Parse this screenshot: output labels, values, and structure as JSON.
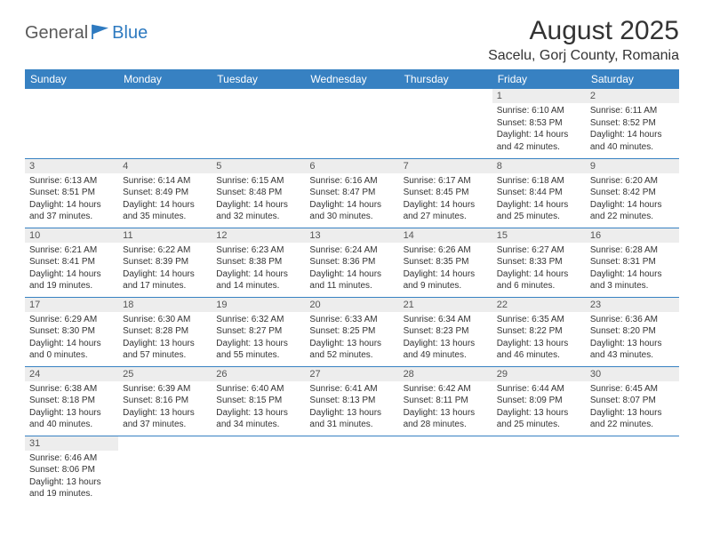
{
  "logo": {
    "text1": "General",
    "text2": "Blue"
  },
  "title": "August 2025",
  "location": "Sacelu, Gorj County, Romania",
  "colors": {
    "header_bg": "#3781c2",
    "header_text": "#ffffff",
    "daynum_bg": "#ededed",
    "row_border": "#3781c2",
    "logo_gray": "#5a5a5a",
    "logo_blue": "#2e7ac0"
  },
  "day_headers": [
    "Sunday",
    "Monday",
    "Tuesday",
    "Wednesday",
    "Thursday",
    "Friday",
    "Saturday"
  ],
  "weeks": [
    [
      null,
      null,
      null,
      null,
      null,
      {
        "n": "1",
        "sr": "Sunrise: 6:10 AM",
        "ss": "Sunset: 8:53 PM",
        "d1": "Daylight: 14 hours",
        "d2": "and 42 minutes."
      },
      {
        "n": "2",
        "sr": "Sunrise: 6:11 AM",
        "ss": "Sunset: 8:52 PM",
        "d1": "Daylight: 14 hours",
        "d2": "and 40 minutes."
      }
    ],
    [
      {
        "n": "3",
        "sr": "Sunrise: 6:13 AM",
        "ss": "Sunset: 8:51 PM",
        "d1": "Daylight: 14 hours",
        "d2": "and 37 minutes."
      },
      {
        "n": "4",
        "sr": "Sunrise: 6:14 AM",
        "ss": "Sunset: 8:49 PM",
        "d1": "Daylight: 14 hours",
        "d2": "and 35 minutes."
      },
      {
        "n": "5",
        "sr": "Sunrise: 6:15 AM",
        "ss": "Sunset: 8:48 PM",
        "d1": "Daylight: 14 hours",
        "d2": "and 32 minutes."
      },
      {
        "n": "6",
        "sr": "Sunrise: 6:16 AM",
        "ss": "Sunset: 8:47 PM",
        "d1": "Daylight: 14 hours",
        "d2": "and 30 minutes."
      },
      {
        "n": "7",
        "sr": "Sunrise: 6:17 AM",
        "ss": "Sunset: 8:45 PM",
        "d1": "Daylight: 14 hours",
        "d2": "and 27 minutes."
      },
      {
        "n": "8",
        "sr": "Sunrise: 6:18 AM",
        "ss": "Sunset: 8:44 PM",
        "d1": "Daylight: 14 hours",
        "d2": "and 25 minutes."
      },
      {
        "n": "9",
        "sr": "Sunrise: 6:20 AM",
        "ss": "Sunset: 8:42 PM",
        "d1": "Daylight: 14 hours",
        "d2": "and 22 minutes."
      }
    ],
    [
      {
        "n": "10",
        "sr": "Sunrise: 6:21 AM",
        "ss": "Sunset: 8:41 PM",
        "d1": "Daylight: 14 hours",
        "d2": "and 19 minutes."
      },
      {
        "n": "11",
        "sr": "Sunrise: 6:22 AM",
        "ss": "Sunset: 8:39 PM",
        "d1": "Daylight: 14 hours",
        "d2": "and 17 minutes."
      },
      {
        "n": "12",
        "sr": "Sunrise: 6:23 AM",
        "ss": "Sunset: 8:38 PM",
        "d1": "Daylight: 14 hours",
        "d2": "and 14 minutes."
      },
      {
        "n": "13",
        "sr": "Sunrise: 6:24 AM",
        "ss": "Sunset: 8:36 PM",
        "d1": "Daylight: 14 hours",
        "d2": "and 11 minutes."
      },
      {
        "n": "14",
        "sr": "Sunrise: 6:26 AM",
        "ss": "Sunset: 8:35 PM",
        "d1": "Daylight: 14 hours",
        "d2": "and 9 minutes."
      },
      {
        "n": "15",
        "sr": "Sunrise: 6:27 AM",
        "ss": "Sunset: 8:33 PM",
        "d1": "Daylight: 14 hours",
        "d2": "and 6 minutes."
      },
      {
        "n": "16",
        "sr": "Sunrise: 6:28 AM",
        "ss": "Sunset: 8:31 PM",
        "d1": "Daylight: 14 hours",
        "d2": "and 3 minutes."
      }
    ],
    [
      {
        "n": "17",
        "sr": "Sunrise: 6:29 AM",
        "ss": "Sunset: 8:30 PM",
        "d1": "Daylight: 14 hours",
        "d2": "and 0 minutes."
      },
      {
        "n": "18",
        "sr": "Sunrise: 6:30 AM",
        "ss": "Sunset: 8:28 PM",
        "d1": "Daylight: 13 hours",
        "d2": "and 57 minutes."
      },
      {
        "n": "19",
        "sr": "Sunrise: 6:32 AM",
        "ss": "Sunset: 8:27 PM",
        "d1": "Daylight: 13 hours",
        "d2": "and 55 minutes."
      },
      {
        "n": "20",
        "sr": "Sunrise: 6:33 AM",
        "ss": "Sunset: 8:25 PM",
        "d1": "Daylight: 13 hours",
        "d2": "and 52 minutes."
      },
      {
        "n": "21",
        "sr": "Sunrise: 6:34 AM",
        "ss": "Sunset: 8:23 PM",
        "d1": "Daylight: 13 hours",
        "d2": "and 49 minutes."
      },
      {
        "n": "22",
        "sr": "Sunrise: 6:35 AM",
        "ss": "Sunset: 8:22 PM",
        "d1": "Daylight: 13 hours",
        "d2": "and 46 minutes."
      },
      {
        "n": "23",
        "sr": "Sunrise: 6:36 AM",
        "ss": "Sunset: 8:20 PM",
        "d1": "Daylight: 13 hours",
        "d2": "and 43 minutes."
      }
    ],
    [
      {
        "n": "24",
        "sr": "Sunrise: 6:38 AM",
        "ss": "Sunset: 8:18 PM",
        "d1": "Daylight: 13 hours",
        "d2": "and 40 minutes."
      },
      {
        "n": "25",
        "sr": "Sunrise: 6:39 AM",
        "ss": "Sunset: 8:16 PM",
        "d1": "Daylight: 13 hours",
        "d2": "and 37 minutes."
      },
      {
        "n": "26",
        "sr": "Sunrise: 6:40 AM",
        "ss": "Sunset: 8:15 PM",
        "d1": "Daylight: 13 hours",
        "d2": "and 34 minutes."
      },
      {
        "n": "27",
        "sr": "Sunrise: 6:41 AM",
        "ss": "Sunset: 8:13 PM",
        "d1": "Daylight: 13 hours",
        "d2": "and 31 minutes."
      },
      {
        "n": "28",
        "sr": "Sunrise: 6:42 AM",
        "ss": "Sunset: 8:11 PM",
        "d1": "Daylight: 13 hours",
        "d2": "and 28 minutes."
      },
      {
        "n": "29",
        "sr": "Sunrise: 6:44 AM",
        "ss": "Sunset: 8:09 PM",
        "d1": "Daylight: 13 hours",
        "d2": "and 25 minutes."
      },
      {
        "n": "30",
        "sr": "Sunrise: 6:45 AM",
        "ss": "Sunset: 8:07 PM",
        "d1": "Daylight: 13 hours",
        "d2": "and 22 minutes."
      }
    ],
    [
      {
        "n": "31",
        "sr": "Sunrise: 6:46 AM",
        "ss": "Sunset: 8:06 PM",
        "d1": "Daylight: 13 hours",
        "d2": "and 19 minutes."
      },
      null,
      null,
      null,
      null,
      null,
      null
    ]
  ]
}
